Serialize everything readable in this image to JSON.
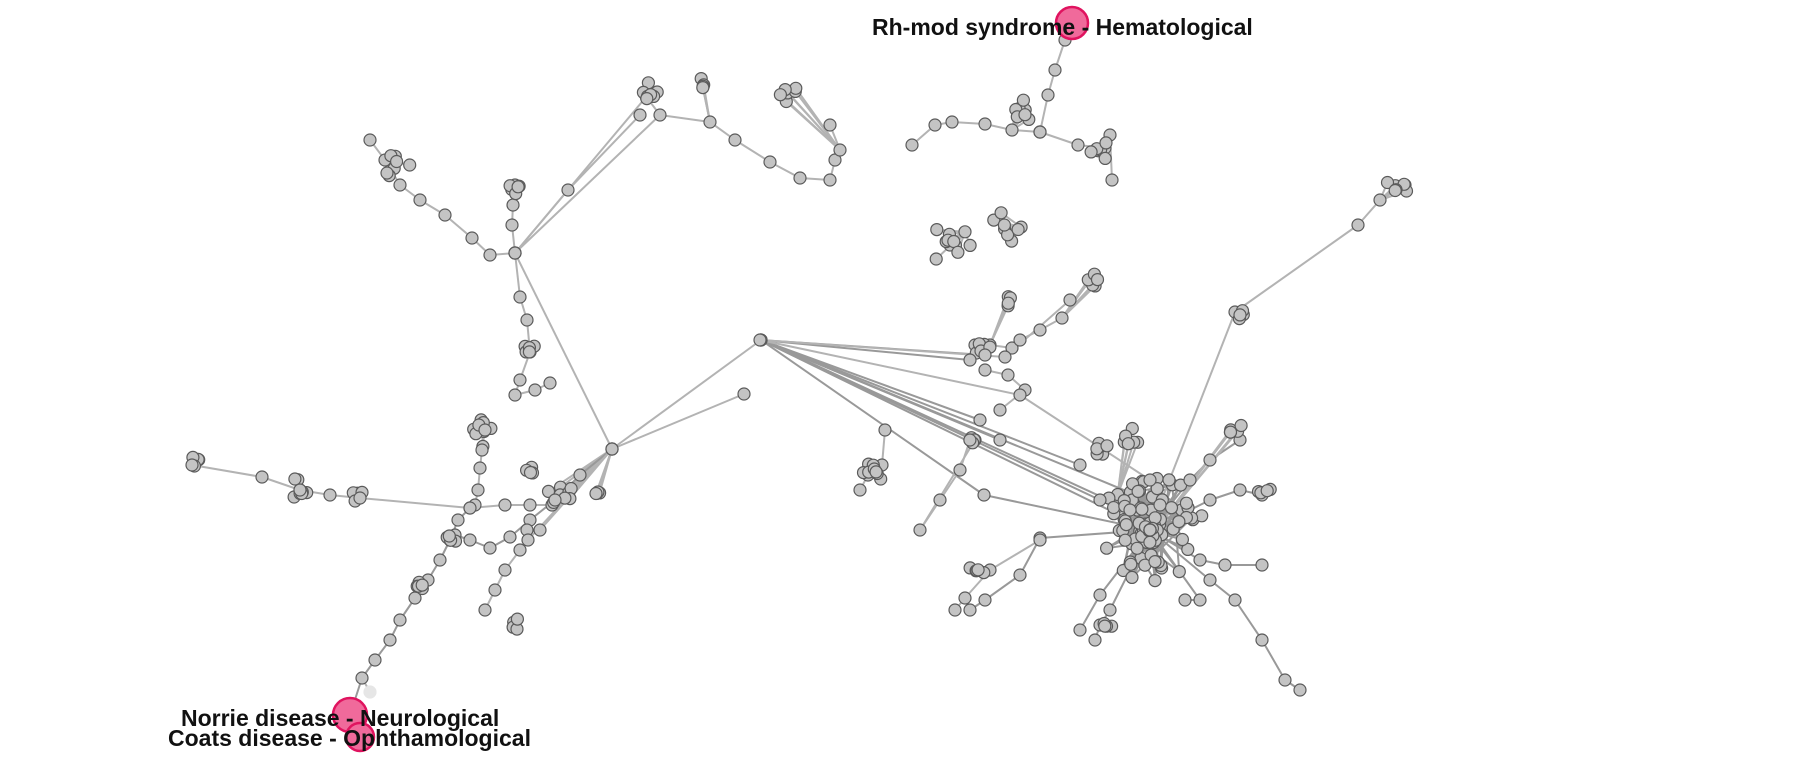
{
  "network": {
    "highlighted_nodes": [
      {
        "id": "rh-mod",
        "label": "Rh-mod syndrome - Hematological"
      },
      {
        "id": "norrie",
        "label": "Norrie disease - Neurological"
      },
      {
        "id": "coats",
        "label": "Coats disease - Ophthamological"
      }
    ],
    "colors": {
      "node_fill": "#c4c4c4",
      "node_stroke": "#5a5a5a",
      "edge": "#b3b3b3",
      "highlight_fill": "#f06a9b",
      "highlight_stroke": "#e0135f",
      "label_text": "#111111"
    }
  }
}
